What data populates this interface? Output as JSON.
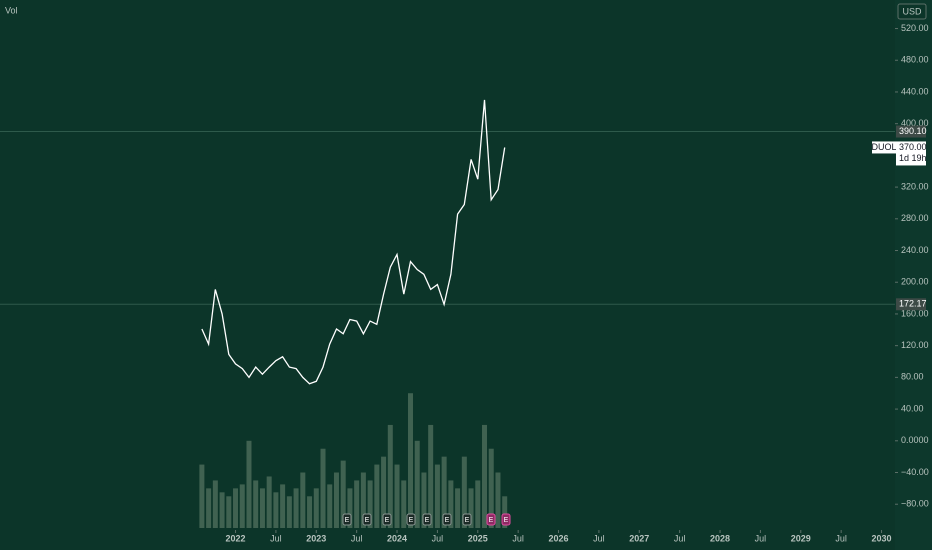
{
  "chart_data": {
    "type": "line",
    "volume_label": "Vol",
    "currency": "USD",
    "symbol": "DUOL",
    "countdown": "1d 19h",
    "earnings_label": "E",
    "x": [
      "2021-08",
      "2021-09",
      "2021-10",
      "2021-11",
      "2021-12",
      "2022-01",
      "2022-02",
      "2022-03",
      "2022-04",
      "2022-05",
      "2022-06",
      "2022-07",
      "2022-08",
      "2022-09",
      "2022-10",
      "2022-11",
      "2022-12",
      "2023-01",
      "2023-02",
      "2023-03",
      "2023-04",
      "2023-05",
      "2023-06",
      "2023-07",
      "2023-08",
      "2023-09",
      "2023-10",
      "2023-11",
      "2023-12",
      "2024-01",
      "2024-02",
      "2024-03",
      "2024-04",
      "2024-05",
      "2024-06",
      "2024-07",
      "2024-08",
      "2024-09",
      "2024-10",
      "2024-11",
      "2024-12",
      "2025-01",
      "2025-02",
      "2025-03",
      "2025-04",
      "2025-05"
    ],
    "series": [
      {
        "name": "DUOL",
        "color": "#ffffff",
        "values": [
          141,
          122,
          191,
          160,
          109,
          97,
          91,
          80,
          93,
          84,
          93,
          101,
          106,
          93,
          91,
          80,
          72,
          75,
          93,
          122,
          141,
          135,
          153,
          151,
          135,
          151,
          147,
          185,
          219,
          235,
          185,
          226,
          216,
          210,
          191,
          197,
          172,
          210,
          286,
          298,
          355,
          330,
          430,
          304,
          317,
          370
        ]
      },
      {
        "name": "Vol",
        "color": "#4a6a58",
        "values": [
          -30,
          -60,
          -50,
          -65,
          -70,
          -60,
          -55,
          0,
          -50,
          -60,
          -45,
          -65,
          -55,
          -70,
          -60,
          -40,
          -70,
          -60,
          -10,
          -55,
          -40,
          -25,
          -60,
          -50,
          -40,
          -50,
          -30,
          -20,
          20,
          -30,
          -50,
          60,
          0,
          -40,
          20,
          -30,
          -20,
          -50,
          -60,
          -20,
          -60,
          -50,
          20,
          -10,
          -40,
          -70
        ]
      }
    ],
    "xlim": [
      "2019-02",
      "2030-03"
    ],
    "xticks": [
      {
        "value": "2022-01",
        "label": "2022"
      },
      {
        "value": "2022-07",
        "label": "Jul"
      },
      {
        "value": "2023-01",
        "label": "2023"
      },
      {
        "value": "2023-07",
        "label": "Jul"
      },
      {
        "value": "2024-01",
        "label": "2024"
      },
      {
        "value": "2024-07",
        "label": "Jul"
      },
      {
        "value": "2025-01",
        "label": "2025"
      },
      {
        "value": "2025-07",
        "label": "Jul"
      },
      {
        "value": "2026-01",
        "label": "2026"
      },
      {
        "value": "2026-07",
        "label": "Jul"
      },
      {
        "value": "2027-01",
        "label": "2027"
      },
      {
        "value": "2027-07",
        "label": "Jul"
      },
      {
        "value": "2028-01",
        "label": "2028"
      },
      {
        "value": "2028-07",
        "label": "Jul"
      },
      {
        "value": "2029-01",
        "label": "2029"
      },
      {
        "value": "2029-07",
        "label": "Jul"
      },
      {
        "value": "2030-01",
        "label": "2030"
      }
    ],
    "ylim": [
      -110,
      556
    ],
    "yticks": [
      {
        "value": 520,
        "label": "520.00"
      },
      {
        "value": 480,
        "label": "480.00"
      },
      {
        "value": 440,
        "label": "440.00"
      },
      {
        "value": 400,
        "label": "400.00"
      },
      {
        "value": 320,
        "label": "320.00"
      },
      {
        "value": 280,
        "label": "280.00"
      },
      {
        "value": 240,
        "label": "240.00"
      },
      {
        "value": 200,
        "label": "200.00"
      },
      {
        "value": 160,
        "label": "160.00"
      },
      {
        "value": 120,
        "label": "120.00"
      },
      {
        "value": 80,
        "label": "80.00"
      },
      {
        "value": 40,
        "label": "40.00"
      },
      {
        "value": 0,
        "label": "0.0000"
      },
      {
        "value": -40,
        "label": "−40.00"
      },
      {
        "value": -80,
        "label": "−80.00"
      }
    ],
    "price_lines": [
      {
        "value": 390.1,
        "label": "390.10"
      },
      172.17
    ],
    "last_price": {
      "value": 370,
      "label": "370.00"
    }
  }
}
